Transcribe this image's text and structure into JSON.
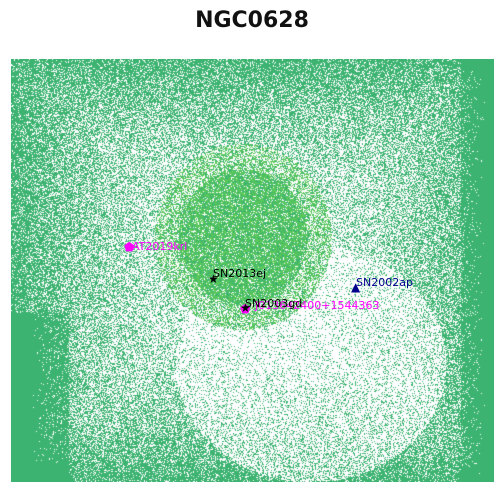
{
  "title": "NGC0628",
  "image": {
    "background": "#ffffff",
    "pixel_color": "#3cb371",
    "bright_color": "#5ac85a"
  },
  "annotations": [
    {
      "label": "SN2013ej",
      "marker": "star",
      "color": "#000000"
    },
    {
      "label": "SN2003gd",
      "marker": "star",
      "color": "#000000"
    },
    {
      "label": "SN2002ap",
      "marker": "triangle",
      "color": "#00008b"
    },
    {
      "label": "J013642400+1544363",
      "marker": "pentagon",
      "color": "#ff00ff"
    },
    {
      "label": "AT2019krl",
      "marker": "pentagon",
      "color": "#ff00ff"
    }
  ]
}
